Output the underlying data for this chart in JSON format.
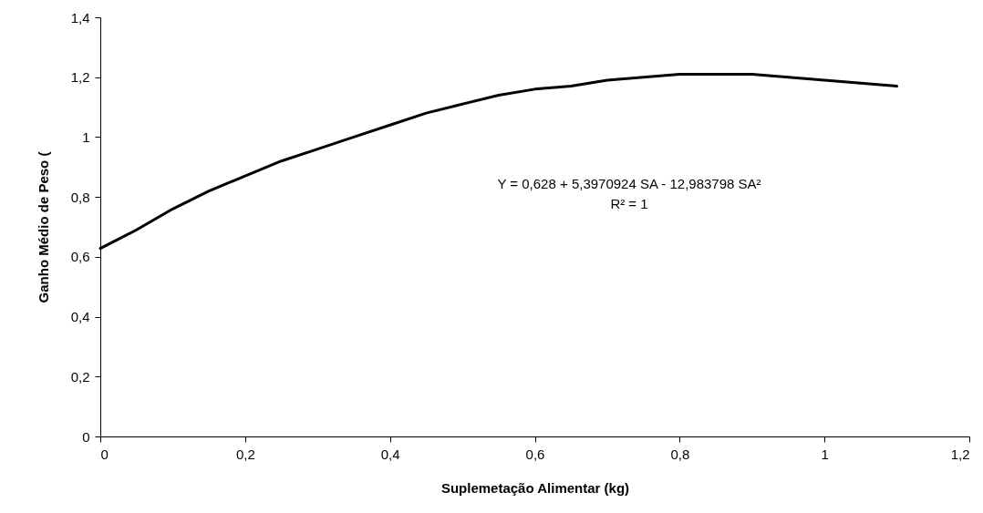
{
  "chart_data": {
    "type": "line",
    "xlabel": "Suplemetação Alimentar (kg)",
    "ylabel": "Ganho Médio de Peso (",
    "annotations": [
      "Y = 0,628 + 5,3970924 SA - 12,983798 SA²",
      "R² = 1"
    ],
    "x": [
      0,
      0.05,
      0.1,
      0.15,
      0.2,
      0.25,
      0.3,
      0.35,
      0.4,
      0.45,
      0.5,
      0.55,
      0.6,
      0.65,
      0.7,
      0.75,
      0.8,
      0.85,
      0.9,
      0.95,
      1.0,
      1.05,
      1.1
    ],
    "series": [
      {
        "color": "#000000",
        "values": [
          0.628,
          0.69,
          0.76,
          0.82,
          0.87,
          0.92,
          0.96,
          1.0,
          1.04,
          1.08,
          1.11,
          1.14,
          1.16,
          1.17,
          1.19,
          1.2,
          1.21,
          1.21,
          1.21,
          1.2,
          1.19,
          1.18,
          1.17
        ]
      }
    ],
    "xlim": [
      0,
      1.2
    ],
    "xticks": [
      0,
      {
        "value": 0.2,
        "label": "0,2"
      },
      {
        "value": 0.4,
        "label": "0,4"
      },
      {
        "value": 0.6,
        "label": "0,6"
      },
      {
        "value": 0.8,
        "label": "0,8"
      },
      1,
      {
        "value": 1.2,
        "label": "1,2"
      }
    ],
    "ylim": [
      0,
      1.4
    ],
    "yticks": [
      0,
      {
        "value": 0.2,
        "label": "0,2"
      },
      {
        "value": 0.4,
        "label": "0,4"
      },
      {
        "value": 0.6,
        "label": "0,6"
      },
      {
        "value": 0.8,
        "label": "0,8"
      },
      1,
      {
        "value": 1.2,
        "label": "1,2"
      },
      {
        "value": 1.4,
        "label": "1,4"
      }
    ],
    "grid": false,
    "marker": "none",
    "line_style": "solid"
  }
}
